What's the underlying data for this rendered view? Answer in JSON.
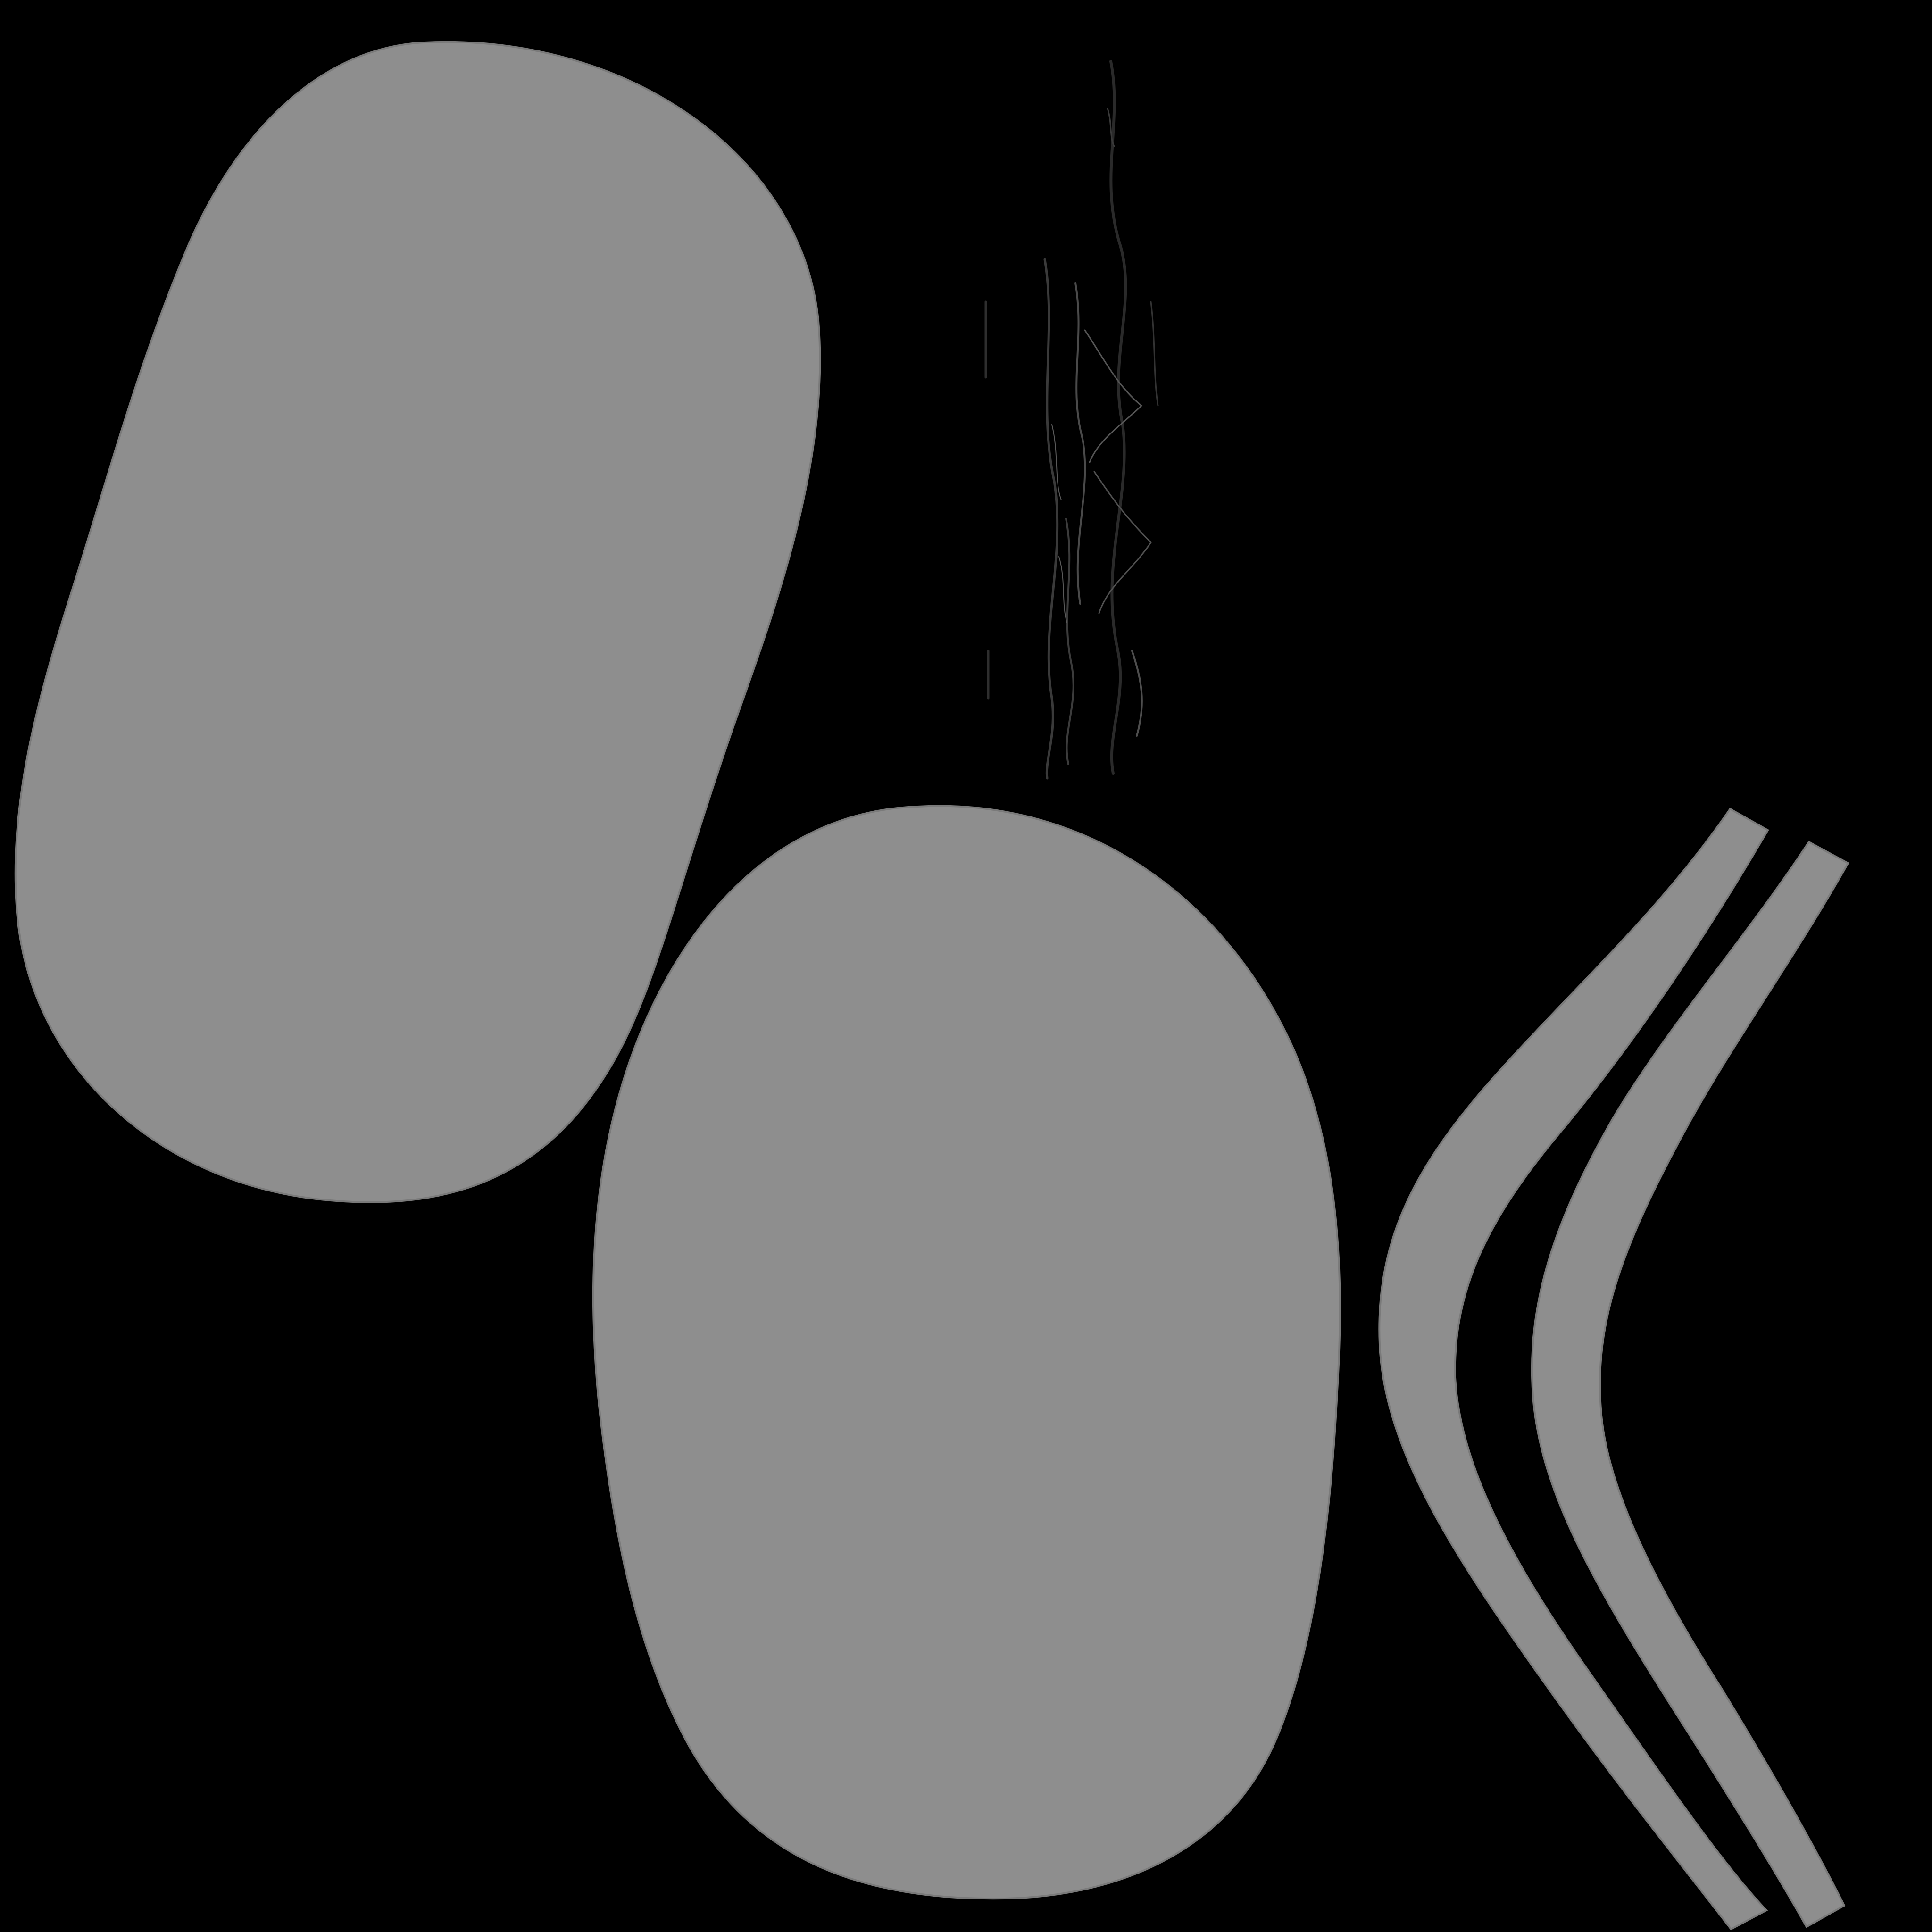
{
  "colors": {
    "background": "#000000",
    "patch_fill": "#8e8e8e",
    "patch_seam": "#7a7a7a",
    "grain_stroke": "#3a3a3a",
    "grain_highlight": "#5a5a5a"
  },
  "shapes": [
    {
      "kind": "uv-island",
      "name": "large-oval-patch-upper-left"
    },
    {
      "kind": "uv-island",
      "name": "large-oval-patch-lower-center"
    },
    {
      "kind": "uv-island",
      "name": "curved-strip-left"
    },
    {
      "kind": "uv-island",
      "name": "curved-strip-right"
    },
    {
      "kind": "texture-fragment",
      "name": "dark-wood-grain-fragment"
    }
  ]
}
